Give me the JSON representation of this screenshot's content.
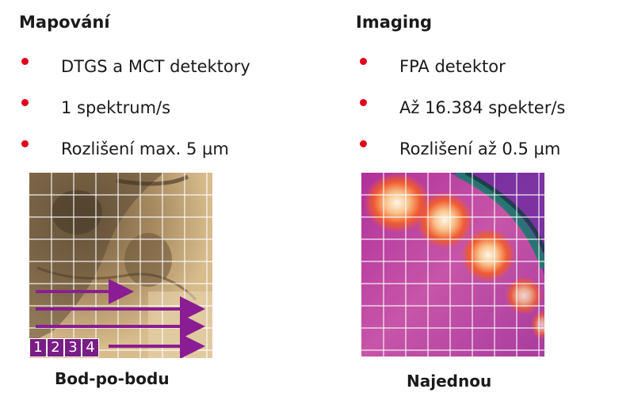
{
  "left": {
    "title": "Mapování",
    "bullets": [
      "DTGS a MCT detektory",
      "1 spektrum/s",
      "Rozlišení max. 5 µm"
    ],
    "caption": "Bod-po-bodu",
    "scan_numbers": [
      "1",
      "2",
      "3",
      "4"
    ]
  },
  "right": {
    "title": "Imaging",
    "bullets": [
      "FPA detektor",
      "Až 16.384 spekter/s",
      "Rozlišení až 0.5 µm"
    ],
    "caption": "Najednou"
  },
  "colors": {
    "bullet": "#e0001b",
    "arrow": "#8a1d93",
    "number_box": "#7a1d86",
    "grid": "#ffffff"
  }
}
